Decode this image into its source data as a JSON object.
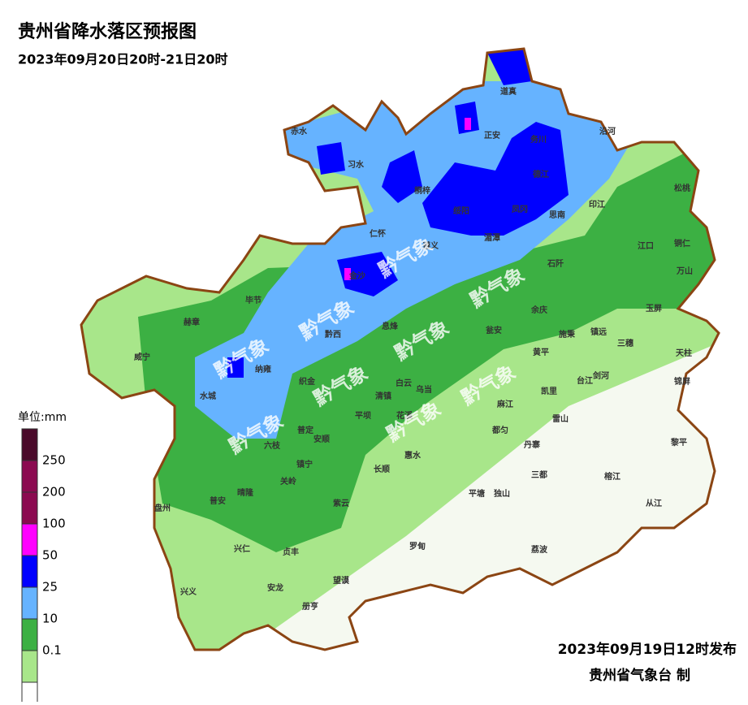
{
  "header": {
    "title": "贵州省降水落区预报图",
    "subtitle": "2023年09月20日20时-21日20时"
  },
  "legend": {
    "unit": "单位:mm",
    "levels": [
      {
        "label": "250",
        "color": "#ff00ff"
      },
      {
        "label": "200",
        "color": "#8b0a50"
      },
      {
        "label": "100",
        "color": "#ff00ff"
      },
      {
        "label": "50",
        "color": "#0000ff"
      },
      {
        "label": "25",
        "color": "#66b3ff"
      },
      {
        "label": "10",
        "color": "#3cb043"
      },
      {
        "label": "0.1",
        "color": "#a8e68a"
      }
    ]
  },
  "watermark": "黔气象",
  "counties": [
    "赤水",
    "习水",
    "道真",
    "正安",
    "务川",
    "沿河",
    "桐梓",
    "绥阳",
    "凤冈",
    "德江",
    "印江",
    "松桃",
    "湄潭",
    "思南",
    "仁怀",
    "遵义",
    "金沙",
    "石阡",
    "江口",
    "铜仁",
    "万山",
    "毕节",
    "赫章",
    "余庆",
    "玉屏",
    "威宁",
    "纳雍",
    "黔西",
    "息烽",
    "瓮安",
    "施秉",
    "镇远",
    "三穗",
    "天柱",
    "织金",
    "黄平",
    "水城",
    "清镇",
    "白云",
    "乌当",
    "麻江",
    "凯里",
    "台江",
    "剑河",
    "锦屏",
    "平坝",
    "花溪",
    "普定",
    "安顺",
    "六枝",
    "镇宁",
    "长顺",
    "惠水",
    "都匀",
    "雷山",
    "丹寨",
    "黎平",
    "关岭",
    "晴隆",
    "普安",
    "紫云",
    "盘州",
    "三都",
    "榕江",
    "平塘",
    "独山",
    "从江",
    "兴仁",
    "贞丰",
    "罗甸",
    "荔波",
    "望谟",
    "兴义",
    "安龙",
    "册亨"
  ],
  "footer": {
    "issued": "2023年09月19日12时发布",
    "maker": "贵州省气象台 制"
  }
}
